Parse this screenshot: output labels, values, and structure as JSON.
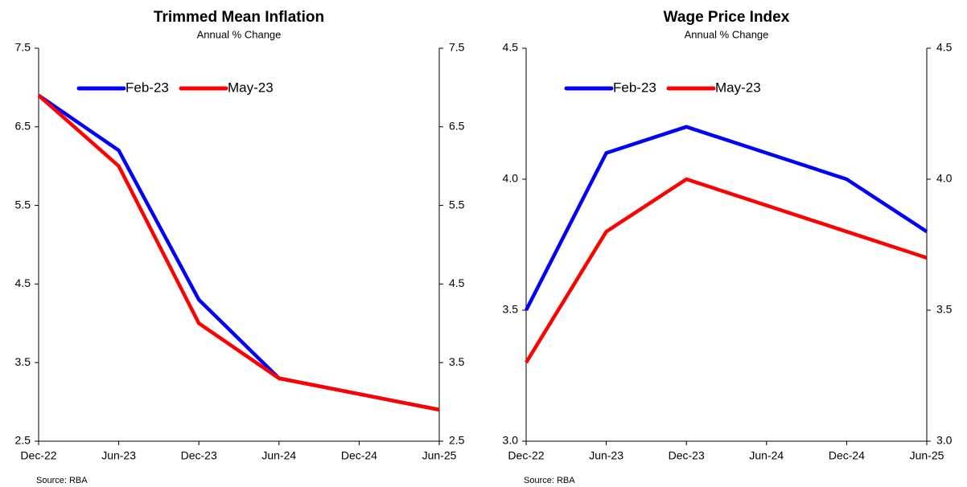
{
  "chart_data": [
    {
      "type": "line",
      "title": "Trimmed Mean Inflation",
      "subtitle": "Annual % Change",
      "source": "Source: RBA",
      "categories": [
        "Dec-22",
        "Jun-23",
        "Dec-23",
        "Jun-24",
        "Dec-24",
        "Jun-25"
      ],
      "series": [
        {
          "name": "Feb-23",
          "color": "#0000ff",
          "values": [
            6.9,
            6.2,
            4.3,
            3.3,
            3.1,
            2.9
          ]
        },
        {
          "name": "May-23",
          "color": "#ff0000",
          "values": [
            6.9,
            6.0,
            4.0,
            3.3,
            3.1,
            2.9
          ]
        }
      ],
      "ylim": [
        2.5,
        7.5
      ],
      "yticks": [
        2.5,
        3.5,
        4.5,
        5.5,
        6.5,
        7.5
      ],
      "y2lim": [
        2.5,
        7.5
      ],
      "y2ticks": [
        2.5,
        3.5,
        4.5,
        5.5,
        6.5,
        7.5
      ],
      "grid": false,
      "legend": "upper left"
    },
    {
      "type": "line",
      "title": "Wage Price Index",
      "subtitle": "Annual % Change",
      "source": "Source: RBA",
      "categories": [
        "Dec-22",
        "Jun-23",
        "Dec-23",
        "Jun-24",
        "Dec-24",
        "Jun-25"
      ],
      "series": [
        {
          "name": "Feb-23",
          "color": "#0000ff",
          "values": [
            3.5,
            4.1,
            4.2,
            4.1,
            4.0,
            3.8
          ]
        },
        {
          "name": "May-23",
          "color": "#ff0000",
          "values": [
            3.3,
            3.8,
            4.0,
            3.9,
            3.8,
            3.7
          ]
        }
      ],
      "ylim": [
        3.0,
        4.5
      ],
      "yticks": [
        {
          "value": 3.0,
          "label": "3.0"
        },
        3.5,
        {
          "value": 4.0,
          "label": "4.0"
        },
        4.5
      ],
      "y2lim": [
        3.0,
        4.5
      ],
      "y2ticks": [
        {
          "value": 3.0,
          "label": "3.0"
        },
        3.5,
        {
          "value": 4.0,
          "label": "4.0"
        },
        4.5
      ],
      "grid": false,
      "legend": "upper left"
    }
  ]
}
